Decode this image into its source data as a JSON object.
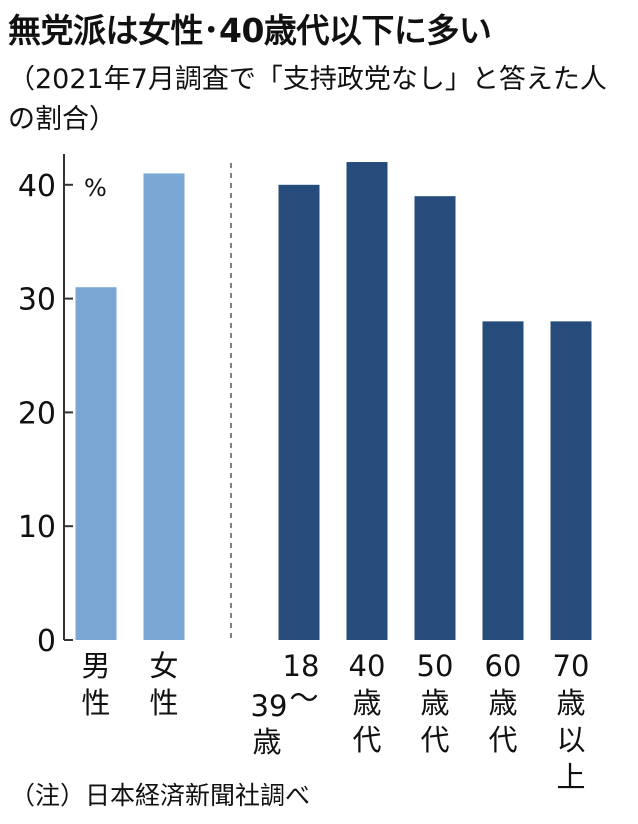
{
  "title": "無党派は女性･40歳代以下に多い",
  "subtitle": "（2021年7月調査で「支持政党なし」と答えた人の割合）",
  "note": "（注）日本経済新聞社調べ",
  "colors": {
    "light": "#7BA7D4",
    "dark": "#254C7A",
    "axis": "#333333",
    "divider": "#808080"
  },
  "chart_data": {
    "type": "bar",
    "unit": "%",
    "ylim": [
      0,
      42
    ],
    "yticks": [
      0,
      10,
      20,
      30,
      40
    ],
    "groups": [
      {
        "name": "gender",
        "color": "light",
        "categories": [
          {
            "label_lines": [
              "男",
              "性"
            ],
            "value": 31
          },
          {
            "label_lines": [
              "女",
              "性"
            ],
            "value": 41
          }
        ]
      },
      {
        "name": "age",
        "color": "dark",
        "categories": [
          {
            "label_lines": [
              "18",
              "〜",
              "39",
              "歳"
            ],
            "value": 40
          },
          {
            "label_lines": [
              "40",
              "歳",
              "代"
            ],
            "value": 42
          },
          {
            "label_lines": [
              "50",
              "歳",
              "代"
            ],
            "value": 39
          },
          {
            "label_lines": [
              "60",
              "歳",
              "代"
            ],
            "value": 28
          },
          {
            "label_lines": [
              "70",
              "歳",
              "以",
              "上"
            ],
            "value": 28
          }
        ]
      }
    ]
  }
}
